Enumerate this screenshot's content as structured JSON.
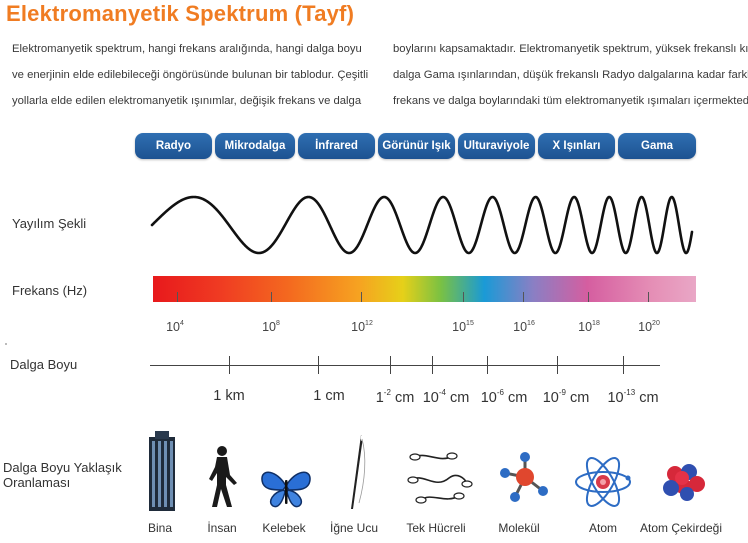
{
  "title": "Elektromanyetik Spektrum (Tayf)",
  "intro": {
    "left": [
      "Elektromanyetik spektrum, hangi frekans aralığında, hangi dalga boyu",
      "ve enerjinin elde edilebileceği öngörüsünde bulunan bir tablodur. Çeşitli",
      "yollarla elde edilen elektromanyetik ışınımlar, değişik frekans ve dalga"
    ],
    "right": [
      "boylarını kapsamaktadır. Elektromanyetik spektrum, yüksek frekanslı kısa",
      "dalga Gama ışınlarından, düşük frekanslı Radyo dalgalarına kadar farklı",
      "frekans ve dalga boylarındaki tüm elektromanyetik ışımaları içermektedir."
    ]
  },
  "bands": [
    "Radyo",
    "Mikrodalga",
    "İnfrared",
    "Görünür Işık",
    "Ulturaviyole",
    "X Işınları",
    "Gama"
  ],
  "row_labels": {
    "propagation": "Yayılım Şekli",
    "frequency": "Frekans (Hz)",
    "wavelength": "Dalga Boyu",
    "size": "Dalga Boyu Yaklaşık Oranlaması"
  },
  "frequency_ticks": [
    {
      "base": "10",
      "exp": "4"
    },
    {
      "base": "10",
      "exp": "8"
    },
    {
      "base": "10",
      "exp": "12"
    },
    {
      "base": "10",
      "exp": "15"
    },
    {
      "base": "10",
      "exp": "16"
    },
    {
      "base": "10",
      "exp": "18"
    },
    {
      "base": "10",
      "exp": "20"
    }
  ],
  "wavelength_ticks": [
    {
      "pre": "1 km",
      "exp": "",
      "post": ""
    },
    {
      "pre": "1 cm",
      "exp": "",
      "post": ""
    },
    {
      "pre": "1",
      "exp": "-2",
      "post": " cm"
    },
    {
      "pre": "10",
      "exp": "-4",
      "post": " cm"
    },
    {
      "pre": "10",
      "exp": "-6",
      "post": " cm"
    },
    {
      "pre": "10",
      "exp": "-9",
      "post": " cm"
    },
    {
      "pre": "10",
      "exp": "-13",
      "post": " cm"
    }
  ],
  "objects": [
    {
      "label": "Bina",
      "icon": "building-icon"
    },
    {
      "label": "İnsan",
      "icon": "human-icon"
    },
    {
      "label": "Kelebek",
      "icon": "butterfly-icon"
    },
    {
      "label": "İğne Ucu",
      "icon": "needle-icon"
    },
    {
      "label": "Tek Hücreli",
      "icon": "microbe-icon"
    },
    {
      "label": "Molekül",
      "icon": "molecule-icon"
    },
    {
      "label": "Atom",
      "icon": "atom-icon"
    },
    {
      "label": "Atom Çekirdeği",
      "icon": "nucleus-icon"
    }
  ],
  "colors": {
    "title": "#f07c22",
    "band": "#1d5291",
    "wave": "#111111"
  }
}
